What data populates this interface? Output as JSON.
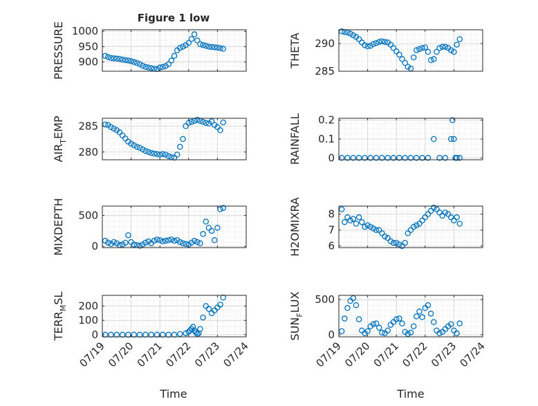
{
  "figure": {
    "title": "Figure 1 low",
    "xlabel": "Time"
  },
  "style": {
    "marker_color": "#0072BD",
    "grid_color": "#d9d9d9",
    "axis_color": "#262626"
  },
  "x_ticks": [
    "07/19",
    "07/20",
    "07/21",
    "07/22",
    "07/23",
    "07/24"
  ],
  "chart_data": [
    {
      "type": "scatter",
      "ylabel": "PRESSURE",
      "ylim": [
        870,
        1005
      ],
      "yticks": [
        900,
        950,
        1000
      ],
      "grid": true,
      "x_days": [
        0.1,
        0.2,
        0.3,
        0.4,
        0.5,
        0.6,
        0.7,
        0.8,
        0.9,
        1.0,
        1.1,
        1.2,
        1.3,
        1.4,
        1.5,
        1.6,
        1.7,
        1.8,
        1.9,
        2.0,
        2.1,
        2.2,
        2.3,
        2.4,
        2.5,
        2.6,
        2.7,
        2.8,
        2.9,
        3.0,
        3.1,
        3.2,
        3.3,
        3.4,
        3.5,
        3.6,
        3.7,
        3.8,
        3.9,
        4.0,
        4.1,
        4.2
      ],
      "y": [
        920,
        916,
        913,
        912,
        911,
        910,
        908,
        906,
        905,
        903,
        900,
        897,
        893,
        888,
        884,
        882,
        880,
        878,
        877,
        882,
        884,
        887,
        893,
        905,
        920,
        938,
        946,
        950,
        955,
        962,
        975,
        990,
        970,
        958,
        955,
        953,
        950,
        949,
        948,
        947,
        945,
        943
      ]
    },
    {
      "type": "scatter",
      "ylabel": "THETA",
      "ylim": [
        285,
        292.5
      ],
      "yticks": [
        285,
        290
      ],
      "grid": true,
      "x_days": [
        0.1,
        0.2,
        0.3,
        0.4,
        0.5,
        0.6,
        0.7,
        0.8,
        0.9,
        1.0,
        1.1,
        1.2,
        1.3,
        1.4,
        1.5,
        1.6,
        1.7,
        1.8,
        1.9,
        2.0,
        2.1,
        2.2,
        2.3,
        2.4,
        2.5,
        2.6,
        2.7,
        2.8,
        2.9,
        3.0,
        3.1,
        3.2,
        3.3,
        3.4,
        3.5,
        3.6,
        3.7,
        3.8,
        3.9,
        4.0,
        4.1,
        4.2
      ],
      "y": [
        292.2,
        292.1,
        292.0,
        291.8,
        291.5,
        291.2,
        290.8,
        290.2,
        289.7,
        289.5,
        289.6,
        289.9,
        290.1,
        290.3,
        290.4,
        290.3,
        290.2,
        289.8,
        289.2,
        288.6,
        288.0,
        287.2,
        286.5,
        285.8,
        285.5,
        287.5,
        288.8,
        289.0,
        289.2,
        289.3,
        288.5,
        287.0,
        287.2,
        288.5,
        289.2,
        289.4,
        289.4,
        289.2,
        288.8,
        288.5,
        289.8,
        290.8
      ]
    },
    {
      "type": "scatter",
      "ylabel": "AIR_TEMP",
      "ylim": [
        278.5,
        286.5
      ],
      "yticks": [
        280,
        285
      ],
      "grid": true,
      "x_days": [
        0.1,
        0.2,
        0.3,
        0.4,
        0.5,
        0.6,
        0.7,
        0.8,
        0.9,
        1.0,
        1.1,
        1.2,
        1.3,
        1.4,
        1.5,
        1.6,
        1.7,
        1.8,
        1.9,
        2.0,
        2.1,
        2.2,
        2.3,
        2.4,
        2.5,
        2.6,
        2.7,
        2.8,
        2.9,
        3.0,
        3.1,
        3.2,
        3.3,
        3.4,
        3.5,
        3.6,
        3.7,
        3.8,
        3.9,
        4.0,
        4.1,
        4.2
      ],
      "y": [
        285.3,
        285.2,
        284.8,
        284.5,
        284.2,
        283.8,
        283.2,
        282.6,
        282.0,
        281.6,
        281.3,
        281.0,
        280.8,
        280.5,
        280.2,
        280.0,
        279.8,
        279.7,
        279.6,
        279.5,
        279.6,
        279.5,
        279.2,
        279.0,
        278.9,
        279.5,
        281.0,
        282.5,
        285.0,
        285.6,
        285.8,
        286.0,
        286.2,
        286.0,
        285.8,
        285.6,
        285.5,
        285.9,
        285.2,
        284.8,
        284.2,
        285.7
      ]
    },
    {
      "type": "scatter",
      "ylabel": "RAINFALL",
      "ylim": [
        -0.01,
        0.21
      ],
      "yticks": [
        0,
        0.1,
        0.2
      ],
      "grid": true,
      "x_days": [
        0.1,
        0.3,
        0.5,
        0.7,
        0.9,
        1.1,
        1.3,
        1.5,
        1.7,
        1.9,
        2.1,
        2.3,
        2.5,
        2.7,
        2.9,
        3.1,
        3.3,
        3.5,
        3.7,
        3.9,
        3.95,
        4.0,
        4.05,
        4.1,
        4.2
      ],
      "y": [
        0,
        0,
        0,
        0,
        0,
        0,
        0,
        0,
        0,
        0,
        0,
        0,
        0,
        0,
        0,
        0,
        0.1,
        0,
        0,
        0.1,
        0.2,
        0.1,
        0,
        0,
        0
      ]
    },
    {
      "type": "scatter",
      "ylabel": "MIXDEPTH",
      "ylim": [
        -20,
        650
      ],
      "yticks": [
        0,
        500
      ],
      "grid": true,
      "x_days": [
        0.1,
        0.2,
        0.3,
        0.4,
        0.5,
        0.6,
        0.7,
        0.8,
        0.9,
        1.0,
        1.1,
        1.2,
        1.3,
        1.4,
        1.5,
        1.6,
        1.7,
        1.8,
        1.9,
        2.0,
        2.1,
        2.2,
        2.3,
        2.4,
        2.5,
        2.6,
        2.7,
        2.8,
        2.9,
        3.0,
        3.1,
        3.2,
        3.3,
        3.4,
        3.5,
        3.6,
        3.7,
        3.8,
        3.9,
        4.0,
        4.1,
        4.2
      ],
      "y": [
        90,
        60,
        40,
        70,
        50,
        20,
        30,
        60,
        180,
        70,
        30,
        20,
        10,
        30,
        60,
        80,
        50,
        90,
        110,
        100,
        80,
        90,
        100,
        110,
        90,
        100,
        70,
        50,
        40,
        30,
        60,
        90,
        70,
        50,
        200,
        400,
        300,
        250,
        100,
        300,
        600,
        620
      ]
    },
    {
      "type": "scatter",
      "ylabel": "H2OMIXRA",
      "ylim": [
        5.9,
        8.5
      ],
      "yticks": [
        6,
        7,
        8
      ],
      "grid": true,
      "x_days": [
        0.1,
        0.2,
        0.3,
        0.4,
        0.5,
        0.6,
        0.7,
        0.8,
        0.9,
        1.0,
        1.1,
        1.2,
        1.3,
        1.4,
        1.5,
        1.6,
        1.7,
        1.8,
        1.9,
        2.0,
        2.1,
        2.2,
        2.3,
        2.4,
        2.5,
        2.6,
        2.7,
        2.8,
        2.9,
        3.0,
        3.1,
        3.2,
        3.3,
        3.4,
        3.5,
        3.6,
        3.7,
        3.8,
        3.9,
        4.0,
        4.1,
        4.2
      ],
      "y": [
        8.3,
        7.5,
        7.8,
        7.6,
        7.7,
        7.4,
        7.8,
        7.5,
        7.2,
        7.3,
        7.2,
        7.1,
        7.0,
        7.0,
        6.8,
        6.6,
        6.5,
        6.3,
        6.2,
        6.2,
        6.1,
        6.0,
        6.2,
        6.8,
        7.0,
        7.2,
        7.3,
        7.4,
        7.6,
        7.8,
        8.0,
        8.2,
        8.4,
        8.3,
        8.1,
        7.9,
        8.1,
        8.0,
        7.8,
        7.6,
        7.8,
        7.4
      ]
    },
    {
      "type": "scatter",
      "ylabel": "TERR_MSL",
      "ylim": [
        -15,
        275
      ],
      "yticks": [
        0,
        100,
        200
      ],
      "grid": true,
      "x_days": [
        0.1,
        0.3,
        0.5,
        0.7,
        0.9,
        1.1,
        1.3,
        1.5,
        1.7,
        1.9,
        2.1,
        2.3,
        2.5,
        2.7,
        2.9,
        3.0,
        3.05,
        3.1,
        3.15,
        3.2,
        3.25,
        3.3,
        3.35,
        3.4,
        3.5,
        3.6,
        3.7,
        3.8,
        3.9,
        4.0,
        4.1,
        4.2
      ],
      "y": [
        0,
        0,
        0,
        0,
        0,
        0,
        0,
        0,
        0,
        0,
        0,
        0,
        0,
        5,
        10,
        20,
        30,
        40,
        55,
        30,
        15,
        5,
        10,
        40,
        120,
        200,
        180,
        150,
        170,
        190,
        210,
        260
      ]
    },
    {
      "type": "scatter",
      "ylabel": "SUN_FLUX",
      "ylim": [
        -30,
        560
      ],
      "yticks": [
        0,
        500
      ],
      "grid": true,
      "x_days": [
        0.1,
        0.2,
        0.3,
        0.4,
        0.5,
        0.6,
        0.7,
        0.8,
        0.9,
        1.0,
        1.1,
        1.2,
        1.3,
        1.4,
        1.5,
        1.6,
        1.7,
        1.8,
        1.9,
        2.0,
        2.1,
        2.2,
        2.3,
        2.4,
        2.5,
        2.6,
        2.7,
        2.8,
        2.9,
        3.0,
        3.1,
        3.2,
        3.3,
        3.4,
        3.5,
        3.6,
        3.7,
        3.8,
        3.9,
        4.0,
        4.1,
        4.2
      ],
      "y": [
        50,
        230,
        380,
        480,
        520,
        420,
        220,
        60,
        20,
        50,
        120,
        150,
        160,
        100,
        30,
        20,
        60,
        140,
        180,
        220,
        230,
        160,
        40,
        10,
        30,
        120,
        260,
        330,
        250,
        380,
        420,
        300,
        180,
        60,
        20,
        40,
        80,
        120,
        150,
        60,
        20,
        160
      ]
    }
  ]
}
